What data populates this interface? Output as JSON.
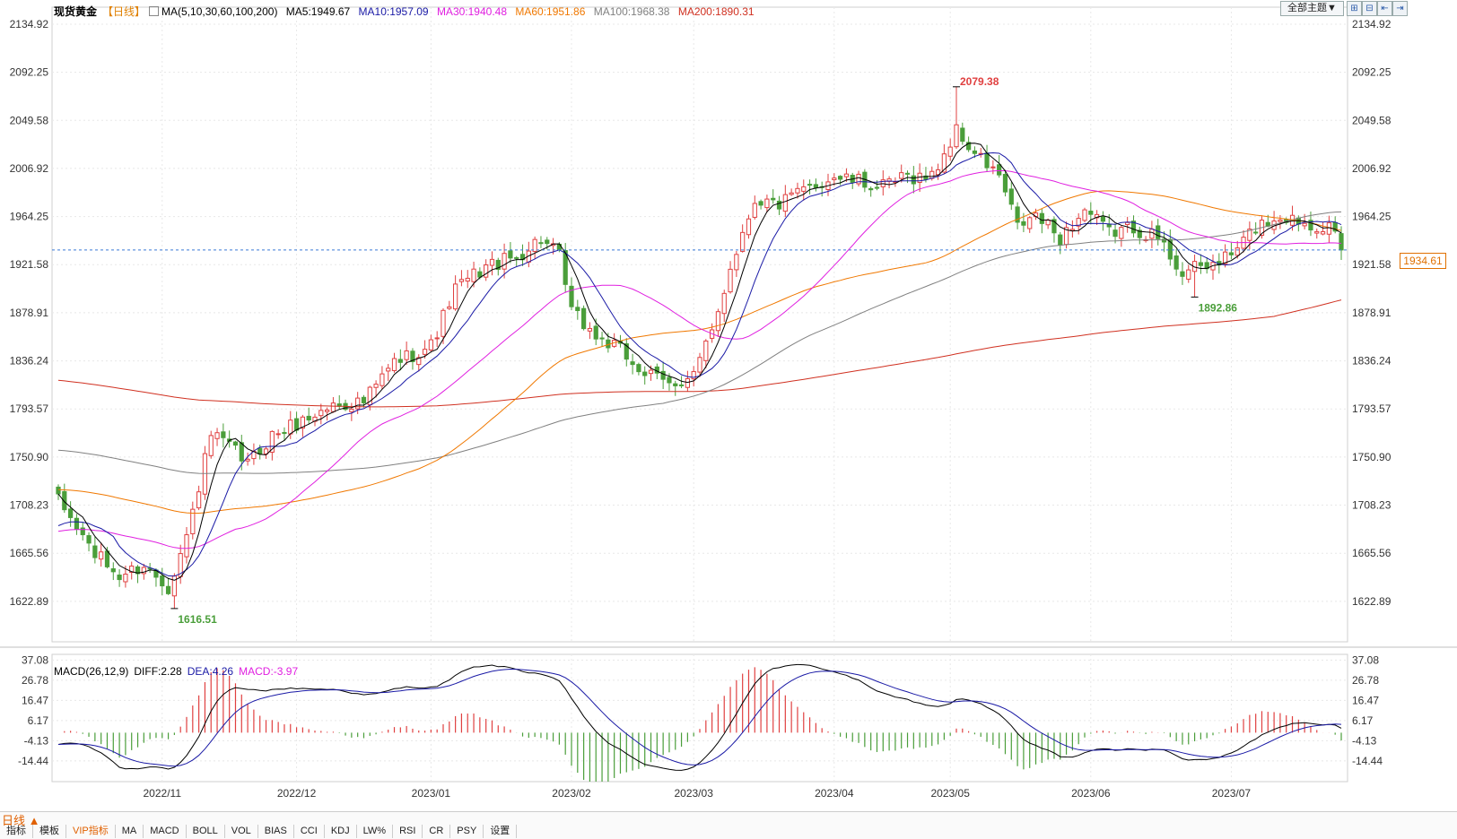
{
  "legend": {
    "title": "现货黄金",
    "period": "【日线】",
    "ma_label": "MA(5,10,30,60,100,200)",
    "ma5": "MA5:1949.67",
    "ma10": "MA10:1957.09",
    "ma30": "MA30:1940.48",
    "ma60": "MA60:1951.86",
    "ma100": "MA100:1968.38",
    "ma200": "MA200:1890.31"
  },
  "toolbar": {
    "theme_button": "全部主题▼",
    "zoom_in": "⊞",
    "zoom_out": "⊟",
    "scroll_left": "⇤",
    "scroll_right": "⇥"
  },
  "macd_legend": {
    "label": "MACD(26,12,9)",
    "diff": "DIFF:2.28",
    "dea": "DEA:4.26",
    "macd": "MACD:-3.97"
  },
  "current_price": "1934.61",
  "bottom": {
    "period_tab": "日线 ▲",
    "tabs": [
      "指标",
      "模板",
      "VIP指标",
      "MA",
      "MACD",
      "BOLL",
      "VOL",
      "BIAS",
      "CCI",
      "KDJ",
      "LW%",
      "RSI",
      "CR",
      "PSY",
      "设置"
    ],
    "active_tab": "VIP指标"
  },
  "colors": {
    "up": "#e04040",
    "down": "#4a9e3a",
    "ma5": "#000000",
    "ma10": "#1a1aa6",
    "ma30": "#e020e0",
    "ma60": "#f07800",
    "ma100": "#808080",
    "ma200": "#d03020",
    "grid": "#e8e8e8",
    "current_line": "#3a7ad8"
  },
  "chart_data": [
    {
      "type": "candlestick",
      "title": "现货黄金",
      "y_ticks": [
        2134.92,
        2092.25,
        2049.58,
        2006.92,
        1964.25,
        1921.58,
        1878.91,
        1836.24,
        1793.57,
        1750.9,
        1708.23,
        1665.56,
        1622.89
      ],
      "ylim": [
        1587.0,
        2150.0
      ],
      "x_labels": [
        "2022/11",
        "2022/12",
        "2023/01",
        "2023/02",
        "2023/03",
        "2023/04",
        "2023/05",
        "2023/06",
        "2023/07"
      ],
      "x_label_index": [
        17,
        39,
        61,
        84,
        104,
        127,
        146,
        169,
        192
      ],
      "num_days": 211,
      "annotations": [
        {
          "text": "2079.38",
          "index": 147,
          "value": 2079.38,
          "type": "high"
        },
        {
          "text": "1892.86",
          "index": 186,
          "value": 1892.86,
          "type": "low"
        },
        {
          "text": "1616.51",
          "index": 19,
          "value": 1616.51,
          "type": "low"
        }
      ],
      "current_price": 1934.61,
      "close_anchors": [
        [
          0,
          1712
        ],
        [
          6,
          1665
        ],
        [
          10,
          1645
        ],
        [
          14,
          1655
        ],
        [
          18,
          1636
        ],
        [
          21,
          1680
        ],
        [
          25,
          1770
        ],
        [
          28,
          1760
        ],
        [
          31,
          1745
        ],
        [
          35,
          1770
        ],
        [
          40,
          1783
        ],
        [
          45,
          1797
        ],
        [
          50,
          1800
        ],
        [
          55,
          1835
        ],
        [
          61,
          1850
        ],
        [
          65,
          1900
        ],
        [
          70,
          1920
        ],
        [
          75,
          1928
        ],
        [
          79,
          1945
        ],
        [
          82,
          1928
        ],
        [
          84,
          1880
        ],
        [
          88,
          1858
        ],
        [
          92,
          1845
        ],
        [
          96,
          1825
        ],
        [
          100,
          1815
        ],
        [
          104,
          1825
        ],
        [
          107,
          1860
        ],
        [
          110,
          1920
        ],
        [
          114,
          1980
        ],
        [
          118,
          1975
        ],
        [
          123,
          1990
        ],
        [
          127,
          2000
        ],
        [
          131,
          1995
        ],
        [
          135,
          1990
        ],
        [
          139,
          2000
        ],
        [
          143,
          2000
        ],
        [
          147,
          2040
        ],
        [
          150,
          2020
        ],
        [
          154,
          2000
        ],
        [
          157,
          1955
        ],
        [
          160,
          1965
        ],
        [
          164,
          1945
        ],
        [
          168,
          1970
        ],
        [
          172,
          1950
        ],
        [
          176,
          1955
        ],
        [
          180,
          1945
        ],
        [
          184,
          1915
        ],
        [
          188,
          1920
        ],
        [
          192,
          1930
        ],
        [
          196,
          1955
        ],
        [
          200,
          1965
        ],
        [
          204,
          1960
        ],
        [
          208,
          1955
        ],
        [
          210,
          1934.61
        ]
      ],
      "ma_start": {
        "ma10": {
          "index": 0,
          "value": 1690
        },
        "ma30": {
          "index": 0,
          "value": 1685
        },
        "ma60": {
          "index": 0,
          "value": 1722
        },
        "ma100": {
          "index": 0,
          "value": 1757
        },
        "ma200": {
          "index": 0,
          "value": 1819
        }
      },
      "ma_end": {
        "ma5": 1949.67,
        "ma10": 1957.09,
        "ma30": 1940.48,
        "ma60": 1951.86,
        "ma100": 1968.38,
        "ma200": 1890.31
      }
    },
    {
      "type": "macd",
      "title": "MACD(26,12,9)",
      "y_ticks": [
        37.08,
        26.78,
        16.47,
        6.17,
        -4.13,
        -14.44
      ],
      "ylim": [
        -25.0,
        40.0
      ],
      "diff": 2.28,
      "dea": 4.26,
      "macd": -3.97
    }
  ]
}
